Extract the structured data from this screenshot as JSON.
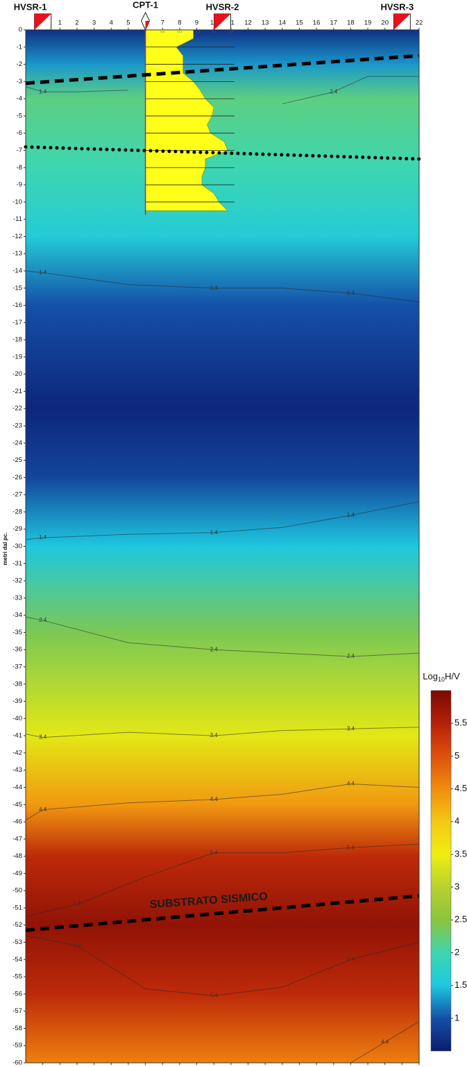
{
  "chart_data": {
    "type": "contour",
    "y_label": "metri dal pc.",
    "annotation": "SUBSTRATO SISMICO",
    "xlim": [
      -1,
      22
    ],
    "xticks": [
      0,
      1,
      2,
      3,
      4,
      5,
      6,
      7,
      8,
      9,
      10,
      11,
      12,
      13,
      14,
      15,
      16,
      17,
      18,
      19,
      20,
      21,
      22
    ],
    "ylim": [
      -60,
      0
    ],
    "yticks": [
      0,
      -1,
      -2,
      -3,
      -4,
      -5,
      -6,
      -7,
      -8,
      -9,
      -10,
      -11,
      -12,
      -13,
      -14,
      -15,
      -16,
      -17,
      -18,
      -19,
      -20,
      -21,
      -22,
      -23,
      -24,
      -25,
      -26,
      -27,
      -28,
      -29,
      -30,
      -31,
      -32,
      -33,
      -34,
      -35,
      -36,
      -37,
      -38,
      -39,
      -40,
      -41,
      -42,
      -43,
      -44,
      -45,
      -46,
      -47,
      -48,
      -49,
      -50,
      -51,
      -52,
      -53,
      -54,
      -55,
      -56,
      -57,
      -58,
      -59,
      -60
    ],
    "profile": {
      "depth": [
        0,
        -2,
        -4,
        -8,
        -12,
        -16,
        -22,
        -26,
        -30,
        -35,
        -41,
        -45,
        -48,
        -52,
        -56,
        -60
      ],
      "values": [
        0.7,
        1.3,
        2.2,
        2.0,
        1.6,
        1.0,
        0.6,
        0.9,
        1.5,
        2.4,
        3.4,
        4.4,
        5.4,
        5.8,
        5.4,
        4.6
      ]
    },
    "colormap": [
      [
        0.5,
        "#0b1c6e"
      ],
      [
        1.0,
        "#1550a8"
      ],
      [
        1.5,
        "#1ec8e0"
      ],
      [
        2.0,
        "#3dd6b0"
      ],
      [
        2.5,
        "#8cc43c"
      ],
      [
        3.0,
        "#b8d030"
      ],
      [
        3.5,
        "#eeee10"
      ],
      [
        4.0,
        "#f5c814"
      ],
      [
        4.5,
        "#f08c10"
      ],
      [
        5.0,
        "#e0500c"
      ],
      [
        5.5,
        "#b42008"
      ],
      [
        6.0,
        "#7a0a04"
      ]
    ],
    "colorbar": {
      "title": "Log",
      "title_sub": "10",
      "title_end": "H/V",
      "lim": [
        0.5,
        6
      ],
      "ticks": [
        1,
        1.5,
        2,
        2.5,
        3,
        3.5,
        4,
        4.5,
        5,
        5.5
      ]
    },
    "contours": [
      {
        "level": 1.4,
        "x": [
          -1,
          0,
          2,
          5
        ],
        "y": [
          -3.3,
          -3.6,
          -3.6,
          -3.5
        ]
      },
      {
        "level": 2.4,
        "x": [
          14,
          17,
          19,
          22
        ],
        "y": [
          -4.3,
          -3.6,
          -2.7,
          -2.7
        ]
      },
      {
        "level": 1.4,
        "x": [
          -1,
          0,
          5,
          10,
          14,
          18,
          22
        ],
        "y": [
          -14,
          -14.1,
          -14.8,
          -15,
          -15,
          -15.3,
          -15.8
        ]
      },
      {
        "level": 1.4,
        "x": [
          -1,
          0,
          5,
          10,
          14,
          18,
          22
        ],
        "y": [
          -29.6,
          -29.5,
          -29.3,
          -29.2,
          -28.9,
          -28.2,
          -27.4
        ]
      },
      {
        "level": 2.4,
        "x": [
          -1,
          0,
          5,
          10,
          14,
          18,
          22
        ],
        "y": [
          -34.1,
          -34.3,
          -35.6,
          -36,
          -36.2,
          -36.4,
          -36.2
        ]
      },
      {
        "level": 3.4,
        "x": [
          -1,
          0,
          5,
          10,
          14,
          18,
          22
        ],
        "y": [
          -40.9,
          -41.1,
          -40.8,
          -41,
          -40.7,
          -40.6,
          -40.5
        ]
      },
      {
        "level": 4.4,
        "x": [
          -1,
          0,
          5,
          10,
          14,
          18,
          22
        ],
        "y": [
          -45.9,
          -45.3,
          -44.9,
          -44.7,
          -44.4,
          -43.8,
          -44
        ]
      },
      {
        "level": 5.4,
        "x": [
          -1,
          2,
          6,
          10,
          14,
          18,
          22
        ],
        "y": [
          -51.5,
          -50.8,
          -49.2,
          -47.8,
          -47.8,
          -47.5,
          -47.3
        ]
      },
      {
        "level": 5.4,
        "x": [
          -1,
          2,
          6,
          10,
          14,
          18,
          22
        ],
        "y": [
          -52.6,
          -53.2,
          -55.7,
          -56.1,
          -55.6,
          -54,
          -53
        ]
      },
      {
        "level": 4.4,
        "x": [
          18,
          20,
          22
        ],
        "y": [
          -60,
          -58.8,
          -57.6
        ]
      }
    ],
    "boundaries": [
      {
        "style": "dashed",
        "x": [
          -1,
          22
        ],
        "y": [
          -3.1,
          -1.5
        ]
      },
      {
        "style": "dotted",
        "x": [
          -1,
          22
        ],
        "y": [
          -6.8,
          -7.5
        ]
      },
      {
        "style": "dashed",
        "x": [
          -1,
          22
        ],
        "y": [
          -52.3,
          -50.3
        ]
      }
    ],
    "markers": [
      {
        "label": "HVSR-1",
        "x": 0,
        "kind": "hvsr"
      },
      {
        "label": "CPT-1",
        "x": 6,
        "kind": "cpt"
      },
      {
        "label": "HVSR-2",
        "x": 10.5,
        "kind": "hvsr"
      },
      {
        "label": "HVSR-3",
        "x": 21,
        "kind": "hvsr"
      }
    ],
    "cpt": {
      "x0": 6,
      "x1": 11,
      "color": "#ffff1a",
      "xlim": [
        0,
        28
      ],
      "xticks": [
        5.6,
        11.2,
        16.8,
        22.4,
        {
          "value": 28,
          "label": "28.0"
        }
      ],
      "depth": [
        0,
        -0.5,
        -1,
        -1.5,
        -2,
        -2.5,
        -3,
        -3.5,
        -4,
        -4.5,
        -5,
        -5.5,
        -6,
        -6.5,
        -7,
        -7.5,
        -8,
        -8.5,
        -9,
        -9.5,
        -10,
        -10.5
      ],
      "qc": [
        15.7,
        15.7,
        10.1,
        12.3,
        12.3,
        12.3,
        15.7,
        17.9,
        19.6,
        22.4,
        21.8,
        20.2,
        21.3,
        25.8,
        26.9,
        19.6,
        19.6,
        18.5,
        18.5,
        22.4,
        24.1,
        26.9
      ]
    }
  }
}
